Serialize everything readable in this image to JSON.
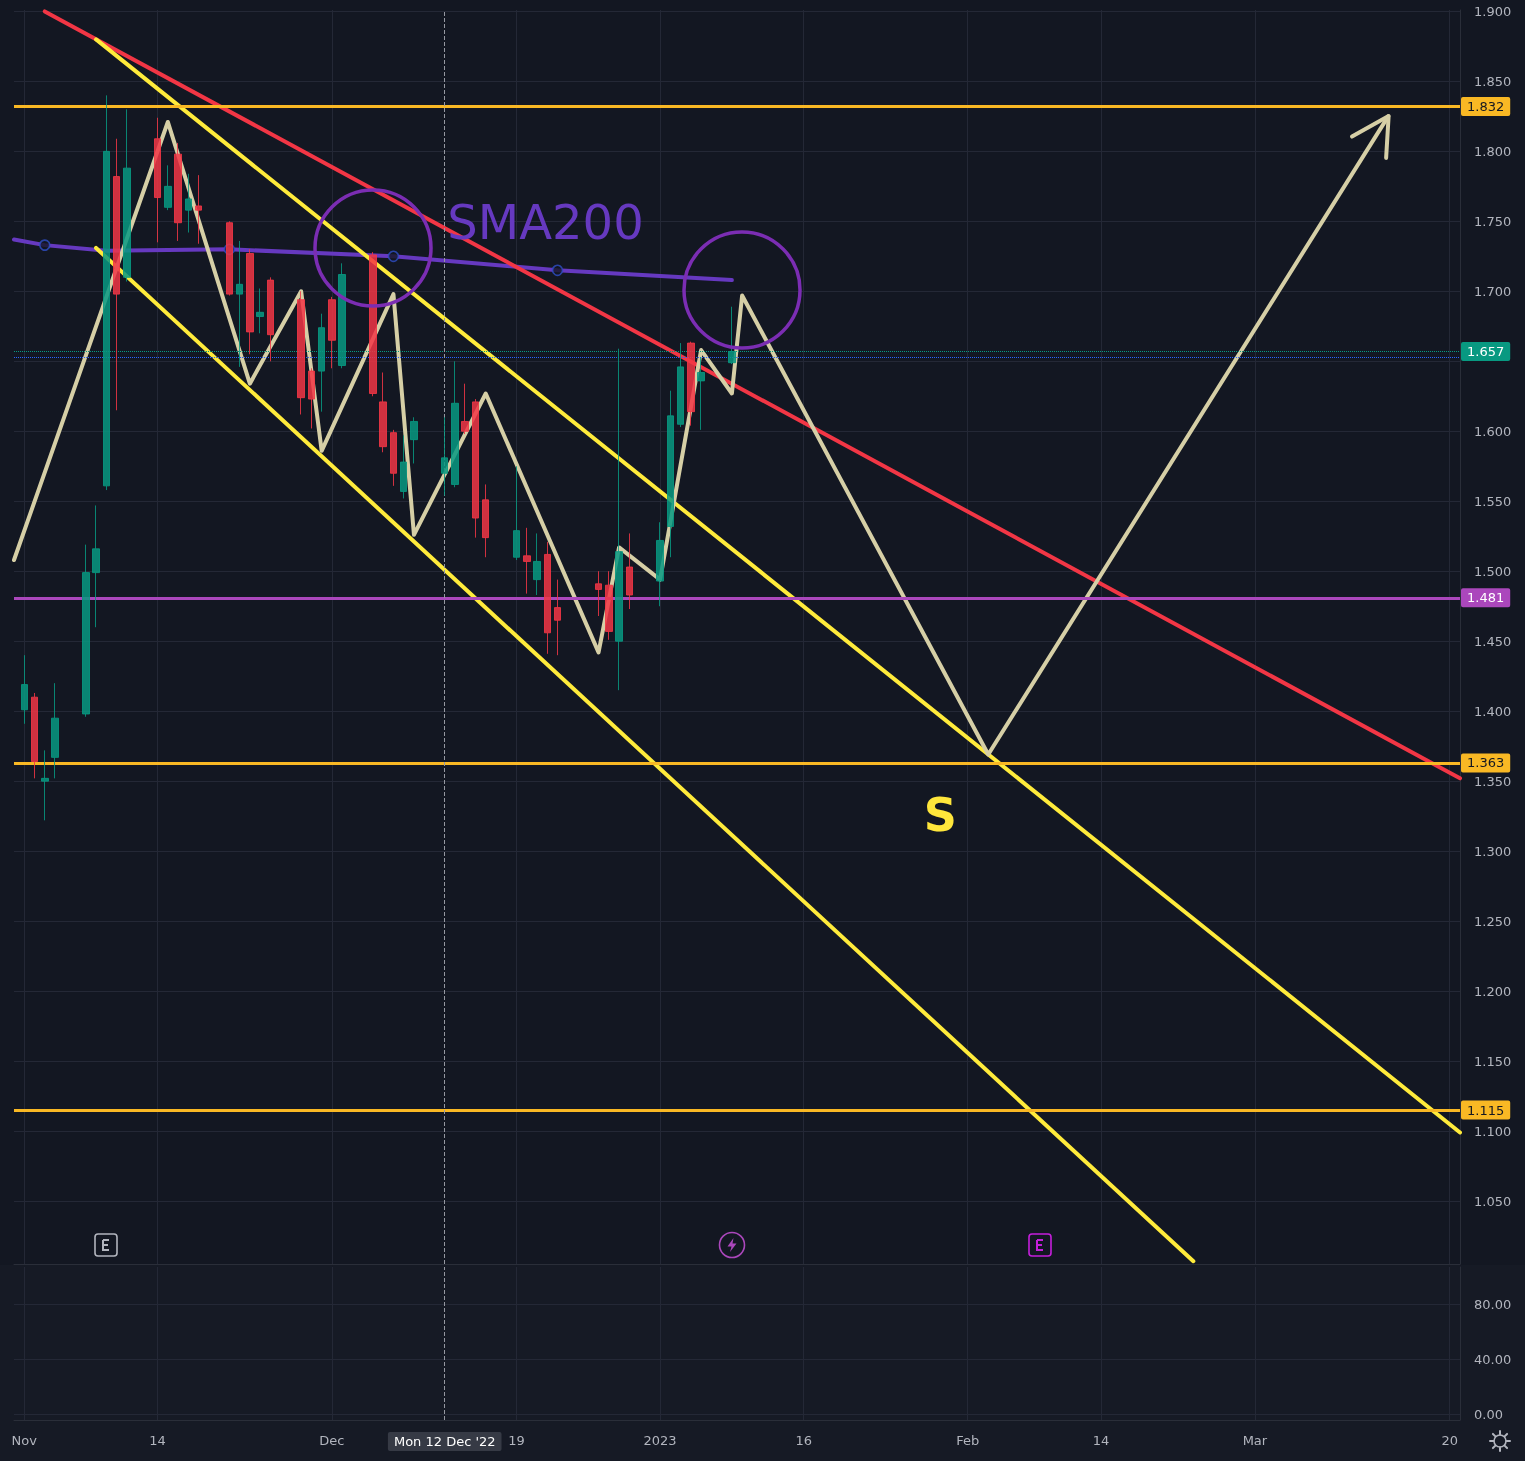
{
  "chart_data": [
    {
      "type": "candlestick",
      "annotations": [
        {
          "text": "S",
          "x": "2023-02-03",
          "y": 1.369
        }
      ],
      "xlim": [
        "2022-10-31",
        "2023-03-21"
      ],
      "xticks": [
        {
          "value": "2022-11-01",
          "label": null
        },
        {
          "value": "2022-11-14",
          "label": null
        },
        {
          "value": "2022-12-01",
          "label": null
        },
        {
          "value": "2022-12-19",
          "label": null
        },
        {
          "value": "2023-01-02",
          "label": null
        },
        {
          "value": "2023-01-16",
          "label": null
        },
        {
          "value": "2023-02-01",
          "label": null
        },
        {
          "value": "2023-02-14",
          "label": null
        },
        {
          "value": "2023-03-01",
          "label": null
        },
        {
          "value": "2023-03-20",
          "label": null
        }
      ],
      "ylim": [
        1.005,
        1.901
      ],
      "yticks": [
        {
          "value": 1.05,
          "label": "1.050"
        },
        {
          "value": 1.1,
          "label": "1.100"
        },
        {
          "value": 1.15,
          "label": "1.150"
        },
        {
          "value": 1.2,
          "label": "1.200"
        },
        {
          "value": 1.25,
          "label": "1.250"
        },
        {
          "value": 1.3,
          "label": "1.300"
        },
        {
          "value": 1.35,
          "label": "1.350"
        },
        {
          "value": 1.4,
          "label": "1.400"
        },
        {
          "value": 1.45,
          "label": "1.450"
        },
        {
          "value": 1.5,
          "label": "1.500"
        },
        {
          "value": 1.55,
          "label": "1.550"
        },
        {
          "value": 1.6,
          "label": "1.600"
        },
        {
          "value": 1.65,
          "label": null
        },
        {
          "value": 1.7,
          "label": "1.700"
        },
        {
          "value": 1.75,
          "label": "1.750"
        },
        {
          "value": 1.8,
          "label": "1.800"
        },
        {
          "value": 1.85,
          "label": "1.850"
        },
        {
          "value": 1.9,
          "label": "1.900"
        }
      ],
      "tick_labels": "y",
      "grid": true,
      "ref_lines": [
        {
          "axis": "y",
          "value": 1.832,
          "label": "1.832",
          "color": "#f9b824"
        },
        {
          "axis": "y",
          "value": 1.657,
          "label": "1.657",
          "color": "#089981",
          "line_style": "dotted"
        },
        {
          "axis": "y",
          "value": 1.653,
          "color": "#2962ff",
          "line_style": "dotted"
        },
        {
          "axis": "y",
          "value": 1.481,
          "label": "1.481",
          "color": "#ab47bc"
        },
        {
          "axis": "y",
          "value": 1.363,
          "label": "1.363",
          "color": "#f9b824"
        },
        {
          "axis": "y",
          "value": 1.115,
          "label": "1.115",
          "color": "#f9b824"
        },
        {
          "axis": "x",
          "value": "2022-12-12",
          "color": "#9598a1",
          "line_style": "dashed"
        }
      ],
      "series": [
        {
          "type": "candlestick",
          "x": [
            "2022-11-01",
            "2022-11-02",
            "2022-11-03",
            "2022-11-04",
            "2022-11-07",
            "2022-11-08",
            "2022-11-09",
            "2022-11-10",
            "2022-11-11",
            "2022-11-14",
            "2022-11-15",
            "2022-11-16",
            "2022-11-17",
            "2022-11-18",
            "2022-11-21",
            "2022-11-22",
            "2022-11-23",
            "2022-11-24",
            "2022-11-25",
            "2022-11-28",
            "2022-11-29",
            "2022-11-30",
            "2022-12-01",
            "2022-12-02",
            "2022-12-05",
            "2022-12-06",
            "2022-12-07",
            "2022-12-08",
            "2022-12-09",
            "2022-12-12",
            "2022-12-13",
            "2022-12-14",
            "2022-12-15",
            "2022-12-16",
            "2022-12-19",
            "2022-12-20",
            "2022-12-21",
            "2022-12-22",
            "2022-12-23",
            "2022-12-27",
            "2022-12-28",
            "2022-12-29",
            "2022-12-30",
            "2023-01-02",
            "2023-01-03",
            "2023-01-04",
            "2023-01-05",
            "2023-01-06",
            "2023-01-09"
          ],
          "ohlc": [
            [
              1.401,
              1.44,
              1.391,
              1.419
            ],
            [
              1.41,
              1.413,
              1.352,
              1.364
            ],
            [
              1.35,
              1.372,
              1.322,
              1.352
            ],
            [
              1.367,
              1.42,
              1.352,
              1.395
            ],
            [
              1.398,
              1.519,
              1.396,
              1.499
            ],
            [
              1.499,
              1.547,
              1.46,
              1.516
            ],
            [
              1.561,
              1.84,
              1.558,
              1.8
            ],
            [
              1.782,
              1.809,
              1.615,
              1.698
            ],
            [
              1.71,
              1.83,
              1.707,
              1.788
            ],
            [
              1.809,
              1.824,
              1.735,
              1.767
            ],
            [
              1.76,
              1.79,
              1.758,
              1.775
            ],
            [
              1.798,
              1.806,
              1.736,
              1.749
            ],
            [
              1.758,
              1.784,
              1.742,
              1.766
            ],
            [
              1.761,
              1.783,
              1.734,
              1.758
            ],
            [
              1.749,
              1.75,
              1.697,
              1.698
            ],
            [
              1.698,
              1.736,
              1.646,
              1.705
            ],
            [
              1.727,
              1.73,
              1.655,
              1.671
            ],
            [
              1.682,
              1.702,
              1.67,
              1.685
            ],
            [
              1.708,
              1.71,
              1.65,
              1.669
            ],
            [
              1.694,
              1.7,
              1.612,
              1.624
            ],
            [
              1.643,
              1.645,
              1.602,
              1.623
            ],
            [
              1.643,
              1.684,
              1.614,
              1.674
            ],
            [
              1.694,
              1.696,
              1.645,
              1.665
            ],
            [
              1.647,
              1.72,
              1.645,
              1.712
            ],
            [
              1.726,
              1.728,
              1.625,
              1.627
            ],
            [
              1.621,
              1.642,
              1.585,
              1.589
            ],
            [
              1.599,
              1.601,
              1.561,
              1.57
            ],
            [
              1.557,
              1.597,
              1.552,
              1.578
            ],
            [
              1.594,
              1.61,
              1.577,
              1.607
            ],
            [
              1.57,
              1.61,
              1.554,
              1.581
            ],
            [
              1.562,
              1.65,
              1.56,
              1.62
            ],
            [
              1.607,
              1.634,
              1.598,
              1.6
            ],
            [
              1.621,
              1.623,
              1.524,
              1.538
            ],
            [
              1.551,
              1.562,
              1.51,
              1.524
            ],
            [
              1.51,
              1.575,
              1.508,
              1.529
            ],
            [
              1.511,
              1.531,
              1.484,
              1.507
            ],
            [
              1.494,
              1.527,
              1.483,
              1.507
            ],
            [
              1.512,
              1.521,
              1.441,
              1.456
            ],
            [
              1.474,
              1.494,
              1.44,
              1.465
            ],
            [
              1.491,
              1.5,
              1.468,
              1.487
            ],
            [
              1.49,
              1.5,
              1.451,
              1.457
            ],
            [
              1.45,
              1.659,
              1.415,
              1.514
            ],
            [
              1.503,
              1.527,
              1.473,
              1.483
            ],
            [
              1.493,
              1.535,
              1.475,
              1.522
            ],
            [
              1.532,
              1.629,
              1.51,
              1.611
            ],
            [
              1.605,
              1.663,
              1.603,
              1.646
            ],
            [
              1.663,
              1.664,
              1.604,
              1.614
            ],
            [
              1.636,
              1.653,
              1.601,
              1.642
            ],
            [
              1.649,
              1.689,
              1.648,
              1.657
            ]
          ],
          "colors": [
            "#089981",
            "#f23645",
            "#089981",
            "#089981",
            "#089981",
            "#089981",
            "#089981",
            "#f23645",
            "#089981",
            "#f23645",
            "#089981",
            "#f23645",
            "#089981",
            "#f23645",
            "#f23645",
            "#089981",
            "#f23645",
            "#089981",
            "#f23645",
            "#f23645",
            "#f23645",
            "#089981",
            "#f23645",
            "#089981",
            "#f23645",
            "#f23645",
            "#f23645",
            "#089981",
            "#089981",
            "#089981",
            "#089981",
            "#f23645",
            "#f23645",
            "#f23645",
            "#089981",
            "#f23645",
            "#089981",
            "#f23645",
            "#f23645",
            "#f23645",
            "#f23645",
            "#089981",
            "#f23645",
            "#089981",
            "#089981",
            "#089981",
            "#f23645",
            "#089981",
            "#089981"
          ]
        },
        {
          "type": "line",
          "name": "SMA200",
          "color": "#6639c0",
          "x": [
            "2022-10-31",
            "2022-11-03",
            "2022-11-09",
            "2022-11-21",
            "2022-12-07",
            "2022-12-23",
            "2023-01-09"
          ],
          "values": [
            1.737,
            1.733,
            1.729,
            1.73,
            1.725,
            1.715,
            1.708
          ]
        },
        {
          "type": "scatter",
          "color": "#2f4fc8",
          "marker": "circle",
          "x": [
            "2022-11-03",
            "2022-11-21",
            "2022-12-07",
            "2022-12-23"
          ],
          "values": [
            1.733,
            1.73,
            1.725,
            1.715
          ]
        },
        {
          "type": "line",
          "color": "#f23645",
          "x": [
            "2022-11-03",
            "2023-03-21"
          ],
          "values": [
            1.9,
            1.352
          ]
        },
        {
          "type": "line",
          "color": "#ffeb3b",
          "x": [
            "2022-11-08",
            "2023-03-21"
          ],
          "values": [
            1.88,
            1.099
          ]
        },
        {
          "type": "line",
          "color": "#ffeb3b",
          "x": [
            "2022-11-08",
            "2023-02-23"
          ],
          "values": [
            1.731,
            1.007
          ]
        },
        {
          "type": "line",
          "color": "#d6cfa6",
          "x": [
            "2022-10-31",
            "2022-11-15",
            "2022-11-23",
            "2022-11-28",
            "2022-11-30",
            "2022-12-07",
            "2022-12-09",
            "2022-12-16",
            "2022-12-27",
            "2022-12-29",
            "2023-01-02",
            "2023-01-06",
            "2023-01-09",
            "2023-01-10",
            "2023-02-03",
            "2023-03-14"
          ],
          "values": [
            1.508,
            1.821,
            1.634,
            1.7,
            1.586,
            1.698,
            1.526,
            1.627,
            1.442,
            1.517,
            1.494,
            1.658,
            1.627,
            1.697,
            1.369,
            1.825
          ]
        }
      ]
    },
    {
      "type": "line",
      "xlim": [
        "2022-10-31",
        "2023-03-21"
      ],
      "xticks": [
        {
          "value": "2022-11-01",
          "label": "Nov"
        },
        {
          "value": "2022-11-14",
          "label": "14"
        },
        {
          "value": "2022-12-01",
          "label": "Dec"
        },
        {
          "value": "2022-12-19",
          "label": "19"
        },
        {
          "value": "2023-01-02",
          "label": "2023"
        },
        {
          "value": "2023-01-16",
          "label": "16"
        },
        {
          "value": "2023-02-01",
          "label": "Feb"
        },
        {
          "value": "2023-02-14",
          "label": "14"
        },
        {
          "value": "2023-03-01",
          "label": "Mar"
        },
        {
          "value": "2023-03-20",
          "label": "20"
        }
      ],
      "ylim": [
        -4,
        107
      ],
      "yticks": [
        {
          "value": 0,
          "label": "0.00"
        },
        {
          "value": 40,
          "label": "40.00"
        },
        {
          "value": 80,
          "label": "80.00"
        }
      ],
      "grid": true,
      "ref_lines": [
        {
          "axis": "x",
          "value": "2022-12-12",
          "label": "Mon 12 Dec '22",
          "color": "#9598a1",
          "line_style": "dashed"
        }
      ]
    }
  ]
}
